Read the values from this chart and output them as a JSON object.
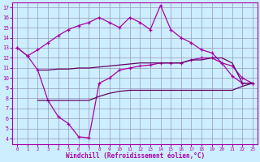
{
  "xlabel": "Windchill (Refroidissement éolien,°C)",
  "background_color": "#cceeff",
  "grid_color": "#9999bb",
  "line_color1": "#aa00aa",
  "line_color2": "#660066",
  "xlim": [
    -0.5,
    23.5
  ],
  "ylim": [
    3.5,
    17.5
  ],
  "xticks": [
    0,
    1,
    2,
    3,
    4,
    5,
    6,
    7,
    8,
    9,
    10,
    11,
    12,
    13,
    14,
    15,
    16,
    17,
    18,
    19,
    20,
    21,
    22,
    23
  ],
  "yticks": [
    4,
    5,
    6,
    7,
    8,
    9,
    10,
    11,
    12,
    13,
    14,
    15,
    16,
    17
  ],
  "line1_x": [
    0,
    1,
    2,
    3,
    4,
    5,
    6,
    7,
    8,
    9,
    10,
    11,
    12,
    13,
    14,
    15,
    16,
    17,
    18,
    19,
    20,
    21,
    22,
    23
  ],
  "line1_y": [
    13.0,
    12.2,
    12.8,
    13.5,
    14.2,
    14.8,
    15.2,
    15.5,
    16.0,
    15.5,
    15.0,
    16.0,
    15.5,
    14.8,
    17.2,
    14.8,
    14.0,
    13.5,
    12.8,
    12.5,
    11.5,
    11.2,
    10.0,
    9.5
  ],
  "line2_x": [
    0,
    1,
    2,
    3,
    4,
    5,
    6,
    7,
    8,
    9,
    10,
    11,
    12,
    13,
    14,
    15,
    16,
    17,
    18,
    19,
    20,
    21,
    22,
    23
  ],
  "line2_y": [
    13.0,
    12.2,
    10.8,
    7.8,
    6.2,
    5.5,
    4.2,
    4.1,
    9.5,
    10.0,
    10.8,
    11.0,
    11.2,
    11.3,
    11.5,
    11.5,
    11.5,
    11.8,
    12.0,
    12.0,
    11.5,
    10.2,
    9.5,
    9.5
  ],
  "line3_x": [
    2,
    3,
    4,
    5,
    6,
    7,
    8,
    9,
    10,
    11,
    12,
    13,
    14,
    15,
    16,
    17,
    18,
    19,
    20,
    21,
    22,
    23
  ],
  "line3_y": [
    10.8,
    10.8,
    10.9,
    10.9,
    11.0,
    11.0,
    11.1,
    11.2,
    11.3,
    11.4,
    11.5,
    11.5,
    11.5,
    11.5,
    11.5,
    11.8,
    11.8,
    12.0,
    12.0,
    11.5,
    9.5,
    9.5
  ],
  "line4_x": [
    2,
    3,
    4,
    5,
    6,
    7,
    8,
    9,
    10,
    11,
    12,
    13,
    14,
    15,
    16,
    17,
    18,
    19,
    20,
    21,
    22,
    23
  ],
  "line4_y": [
    7.8,
    7.8,
    7.8,
    7.8,
    7.8,
    7.8,
    8.2,
    8.5,
    8.7,
    8.8,
    8.8,
    8.8,
    8.8,
    8.8,
    8.8,
    8.8,
    8.8,
    8.8,
    8.8,
    8.8,
    9.2,
    9.5
  ]
}
